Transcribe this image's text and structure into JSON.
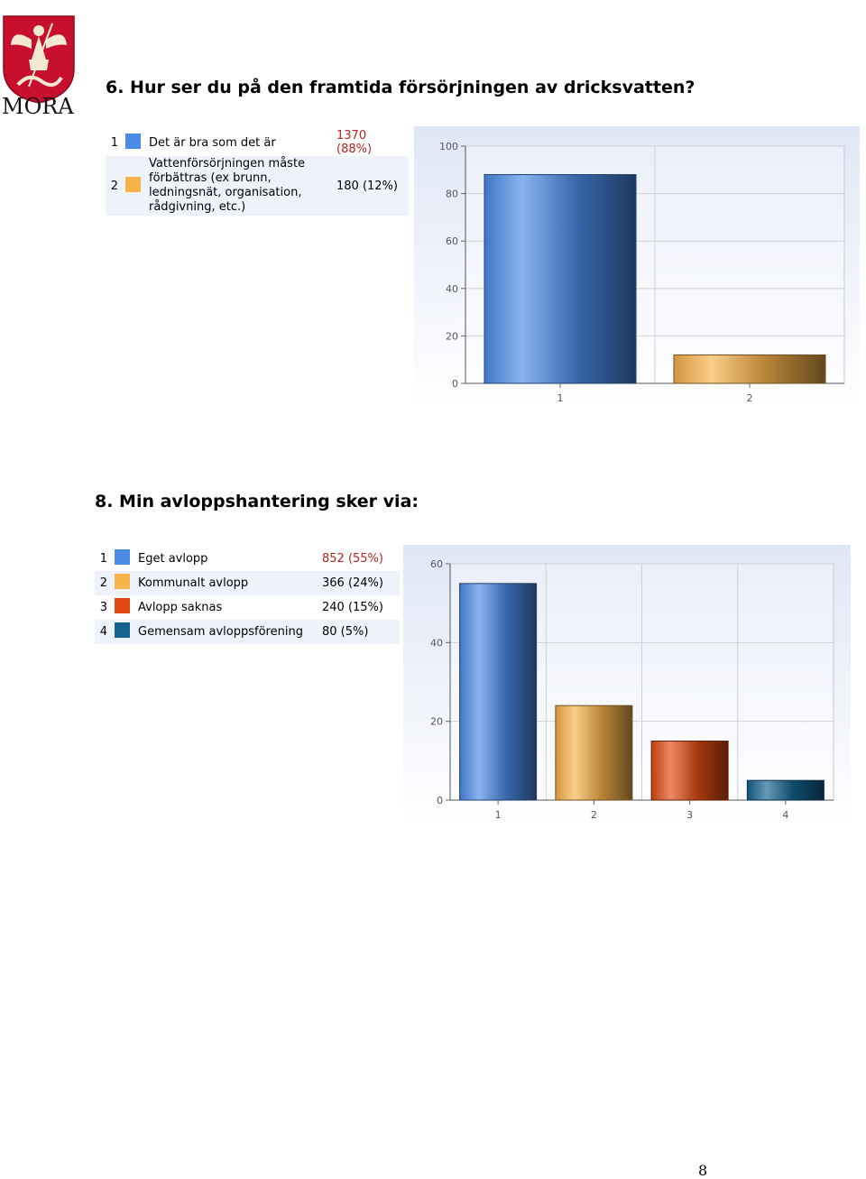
{
  "logo": {
    "text": "MORA",
    "icon": "coat-of-arms-icon"
  },
  "q6": {
    "heading": "6. Hur ser du på den framtida försörjningen av dricksvatten?",
    "legend": [
      {
        "num": "1",
        "label": "Det är bra som det är",
        "value": "1370 (88%)",
        "color": "#4a8be8",
        "highlight": true
      },
      {
        "num": "2",
        "label": "Vattenförsörjningen måste förbättras (ex brunn, ledningsnät, organisation, rådgivning, etc.)",
        "value": "180 (12%)",
        "color": "#f7b24a",
        "highlight": false
      }
    ],
    "chart_data": {
      "type": "bar",
      "categories": [
        "1",
        "2"
      ],
      "values": [
        88,
        12
      ],
      "colors": [
        "#4a8be8",
        "#f7b24a"
      ],
      "ylim": [
        0,
        100
      ],
      "yticks": [
        0,
        20,
        40,
        60,
        80,
        100
      ],
      "grid": true
    }
  },
  "q8": {
    "heading": "8. Min avloppshantering sker via:",
    "legend": [
      {
        "num": "1",
        "label": "Eget avlopp",
        "value": "852 (55%)",
        "color": "#4a8be8",
        "highlight": true
      },
      {
        "num": "2",
        "label": "Kommunalt avlopp",
        "value": "366 (24%)",
        "color": "#f7b24a",
        "highlight": false
      },
      {
        "num": "3",
        "label": "Avlopp saknas",
        "value": "240 (15%)",
        "color": "#e04a12",
        "highlight": false
      },
      {
        "num": "4",
        "label": "Gemensam avloppsförening",
        "value": "80 (5%)",
        "color": "#14628f",
        "highlight": false
      }
    ],
    "chart_data": {
      "type": "bar",
      "categories": [
        "1",
        "2",
        "3",
        "4"
      ],
      "values": [
        55,
        24,
        15,
        5
      ],
      "colors": [
        "#4a8be8",
        "#f7b24a",
        "#e04a12",
        "#14628f"
      ],
      "ylim": [
        0,
        60
      ],
      "yticks": [
        0,
        20,
        40,
        60
      ],
      "grid": true
    }
  },
  "page_number": "8"
}
